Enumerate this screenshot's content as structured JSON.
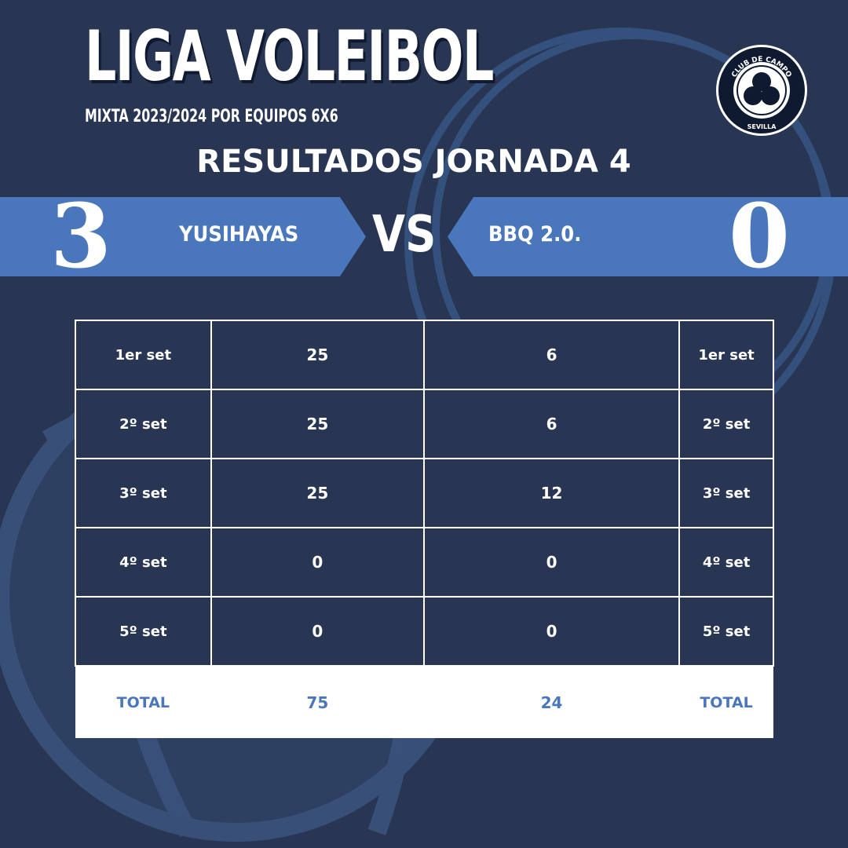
{
  "header": {
    "title": "LIGA VOLEIBOL",
    "subtitle": "MIXTA 2023/2024 POR EQUIPOS 6X6",
    "heading": "RESULTADOS JORNADA 4"
  },
  "logo": {
    "top_text": "CLUB DE CAMPO",
    "bottom_text": "SEVILLA"
  },
  "match": {
    "home_score": "3",
    "home_team": "YUSIHAYAS",
    "vs": "VS",
    "away_team": "BBQ 2.0.",
    "away_score": "0"
  },
  "table": {
    "rows": [
      {
        "label": "1er set",
        "home": "25",
        "away": "6"
      },
      {
        "label": "2º set",
        "home": "25",
        "away": "6"
      },
      {
        "label": "3º set",
        "home": "25",
        "away": "12"
      },
      {
        "label": "4º set",
        "home": "0",
        "away": "0"
      },
      {
        "label": "5º set",
        "home": "0",
        "away": "0"
      }
    ],
    "total": {
      "label": "TOTAL",
      "home": "75",
      "away": "24"
    }
  },
  "colors": {
    "background": "#283654",
    "accent": "#4a76bb"
  }
}
